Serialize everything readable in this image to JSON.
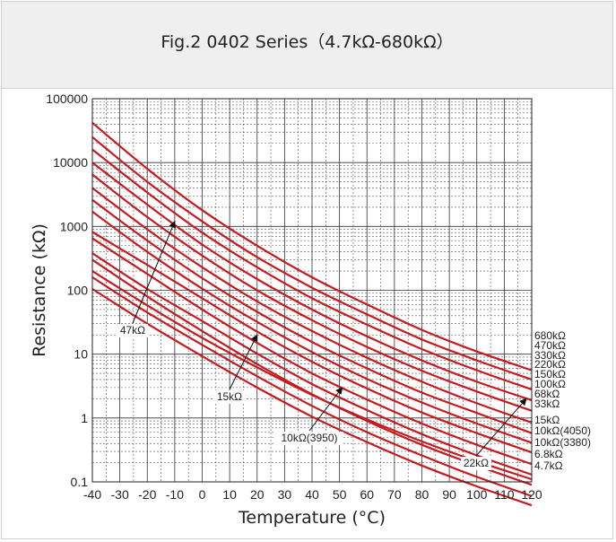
{
  "chart_data": {
    "type": "line",
    "title": "Fig.2 0402 Series（4.7kΩ-680kΩ）",
    "xlabel": "Temperature (°C)",
    "ylabel": "Resistance (kΩ)",
    "xlim": [
      -40,
      120
    ],
    "ylim": [
      0.1,
      100000
    ],
    "yscale": "log",
    "grid": true,
    "x_ticks": [
      "-40",
      "-30",
      "-20",
      "-10",
      "0",
      "10",
      "20",
      "30",
      "40",
      "50",
      "60",
      "70",
      "80",
      "90",
      "100",
      "110",
      "120"
    ],
    "y_ticks": [
      "0.1",
      "1",
      "10",
      "100",
      "1000",
      "10000",
      "100000"
    ],
    "line_color": "#c8191f",
    "series": [
      {
        "name": "680kΩ",
        "x": [
          -40,
          -20,
          0,
          20,
          40,
          60,
          80,
          100,
          120
        ],
        "y": [
          42000,
          8000,
          1800,
          500,
          160,
          60,
          24,
          11,
          5.6
        ]
      },
      {
        "name": "470kΩ",
        "x": [
          -40,
          -20,
          0,
          20,
          40,
          60,
          80,
          100,
          120
        ],
        "y": [
          25000,
          5000,
          1200,
          330,
          110,
          42,
          17,
          8,
          4
        ]
      },
      {
        "name": "330kΩ",
        "x": [
          -40,
          -20,
          0,
          20,
          40,
          60,
          80,
          100,
          120
        ],
        "y": [
          16000,
          3400,
          800,
          230,
          75,
          29,
          12,
          5.6,
          2.8
        ]
      },
      {
        "name": "220kΩ",
        "x": [
          -40,
          -20,
          0,
          20,
          40,
          60,
          80,
          100,
          120
        ],
        "y": [
          10000,
          2200,
          520,
          150,
          50,
          19,
          8,
          3.7,
          1.9
        ]
      },
      {
        "name": "150kΩ",
        "x": [
          -40,
          -20,
          0,
          20,
          40,
          60,
          80,
          100,
          120
        ],
        "y": [
          6500,
          1400,
          350,
          100,
          34,
          13,
          5.5,
          2.6,
          1.3
        ]
      },
      {
        "name": "100kΩ",
        "x": [
          -40,
          -20,
          0,
          20,
          40,
          60,
          80,
          100,
          120
        ],
        "y": [
          4000,
          900,
          230,
          67,
          23,
          8.8,
          3.7,
          1.7,
          0.85
        ]
      },
      {
        "name": "68kΩ",
        "x": [
          -40,
          -20,
          0,
          20,
          40,
          60,
          80,
          100,
          120
        ],
        "y": [
          2600,
          600,
          155,
          46,
          15.5,
          6,
          2.5,
          1.2,
          0.58
        ]
      },
      {
        "name": "47kΩ",
        "x": [
          -40,
          -20,
          0,
          20,
          40,
          60,
          80,
          100,
          120
        ],
        "y": [
          1700,
          400,
          106,
          32,
          10.8,
          4.1,
          1.75,
          0.82,
          0.41
        ]
      },
      {
        "name": "33kΩ",
        "x": [
          -40,
          -20,
          0,
          20,
          40,
          60,
          80,
          100,
          120
        ],
        "y": [
          820,
          250,
          75,
          22.5,
          7.6,
          2.9,
          1.22,
          0.58,
          0.29
        ]
      },
      {
        "name": "22kΩ",
        "x": [
          -40,
          -20,
          0,
          20,
          40,
          60,
          80,
          100,
          120
        ],
        "y": [
          650,
          180,
          50,
          15,
          5,
          1.95,
          0.82,
          0.38,
          0.19
        ]
      },
      {
        "name": "15kΩ",
        "x": [
          -40,
          -20,
          0,
          20,
          40,
          60,
          80,
          100,
          120
        ],
        "y": [
          380,
          105,
          33,
          10.2,
          3.4,
          1.33,
          0.56,
          0.26,
          0.13
        ]
      },
      {
        "name": "10kΩ(4050)",
        "x": [
          -40,
          -20,
          0,
          20,
          40,
          60,
          80,
          100,
          120
        ],
        "y": [
          300,
          80,
          23,
          7,
          2.35,
          0.9,
          0.38,
          0.18,
          0.09
        ]
      },
      {
        "name": "10kΩ(3380)",
        "x": [
          -40,
          -20,
          0,
          20,
          40,
          60,
          80,
          100,
          120
        ],
        "y": [
          200,
          58,
          18,
          6.2,
          2.3,
          0.95,
          0.43,
          0.21,
          0.11
        ]
      },
      {
        "name": "6.8kΩ",
        "x": [
          -40,
          -20,
          0,
          20,
          40,
          60,
          80,
          100,
          120
        ],
        "y": [
          160,
          45,
          14,
          4.5,
          1.55,
          0.6,
          0.26,
          0.12,
          0.06
        ]
      },
      {
        "name": "4.7kΩ",
        "x": [
          -40,
          -20,
          0,
          20,
          40,
          60,
          80,
          100,
          120
        ],
        "y": [
          105,
          30,
          9.3,
          3,
          1.05,
          0.42,
          0.18,
          0.085,
          0.043
        ]
      }
    ],
    "right_labels": [
      "680kΩ",
      "470kΩ",
      "330kΩ",
      "220kΩ",
      "150kΩ",
      "100kΩ",
      "68kΩ",
      "33kΩ",
      "15kΩ",
      "10kΩ(4050)",
      "10kΩ(3380)",
      "6.8kΩ",
      "4.7kΩ"
    ],
    "annotations": [
      {
        "text": "47kΩ",
        "tip_x": -10,
        "tip_y": 1200
      },
      {
        "text": "15kΩ",
        "tip_x": 20,
        "tip_y": 20
      },
      {
        "text": "10kΩ(3950)",
        "tip_x": 51,
        "tip_y": 3
      },
      {
        "text": "22kΩ",
        "tip_x": 118,
        "tip_y": 2
      }
    ]
  }
}
